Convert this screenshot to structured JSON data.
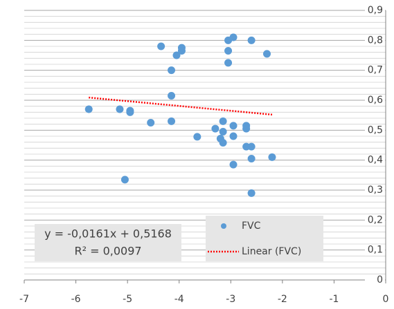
{
  "chart_data": {
    "type": "scatter",
    "series": [
      {
        "name": "FVC",
        "color": "#5b9bd5",
        "x": [
          -5.75,
          -5.15,
          -4.95,
          -4.95,
          -5.05,
          -4.55,
          -4.35,
          -4.15,
          -4.15,
          -4.15,
          -4.05,
          -3.95,
          -3.95,
          -3.65,
          -3.3,
          -3.2,
          -3.15,
          -3.15,
          -3.15,
          -3.05,
          -3.05,
          -3.05,
          -2.95,
          -2.95,
          -2.95,
          -2.95,
          -2.7,
          -2.7,
          -2.7,
          -2.6,
          -2.6,
          -2.6,
          -2.6,
          -2.3,
          -2.2
        ],
        "values": [
          0.57,
          0.57,
          0.565,
          0.56,
          0.335,
          0.525,
          0.78,
          0.7,
          0.615,
          0.53,
          0.75,
          0.775,
          0.765,
          0.478,
          0.505,
          0.472,
          0.53,
          0.495,
          0.458,
          0.8,
          0.765,
          0.725,
          0.81,
          0.515,
          0.48,
          0.385,
          0.515,
          0.505,
          0.445,
          0.8,
          0.445,
          0.405,
          0.29,
          0.755,
          0.41
        ]
      }
    ],
    "trendline": {
      "name": "Linear (FVC)",
      "color": "#ff0000",
      "x": [
        -5.75,
        -2.2
      ],
      "values": [
        0.609,
        0.552
      ]
    },
    "equation": "y = -0,0161x + 0,5168",
    "r_squared": "R² = 0,0097",
    "xlim": [
      -7,
      0
    ],
    "xticks": [
      -7,
      -6,
      -5,
      -4,
      -3,
      -2,
      -1,
      0
    ],
    "ylim": [
      0,
      0.9
    ],
    "yticks": [
      0,
      {
        "value": 0.1,
        "label": "0,1"
      },
      {
        "value": 0.2,
        "label": "0,2"
      },
      {
        "value": 0.3,
        "label": "0,3"
      },
      {
        "value": 0.4,
        "label": "0,4"
      },
      {
        "value": 0.5,
        "label": "0,5"
      },
      {
        "value": 0.6,
        "label": "0,6"
      },
      {
        "value": 0.7,
        "label": "0,7"
      },
      {
        "value": 0.8,
        "label": "0,8"
      },
      {
        "value": 0.9,
        "label": "0,9"
      }
    ],
    "yminorticks": [
      0.02,
      0.04,
      0.06,
      0.08,
      0.12,
      0.14,
      0.16,
      0.18,
      0.22,
      0.24,
      0.26,
      0.28,
      0.32,
      0.34,
      0.36,
      0.38,
      0.42,
      0.44,
      0.46,
      0.48,
      0.52,
      0.54,
      0.56,
      0.58,
      0.62,
      0.64,
      0.66,
      0.68,
      0.72,
      0.74,
      0.76,
      0.78,
      0.82,
      0.84,
      0.86,
      0.88
    ],
    "grid": true
  }
}
